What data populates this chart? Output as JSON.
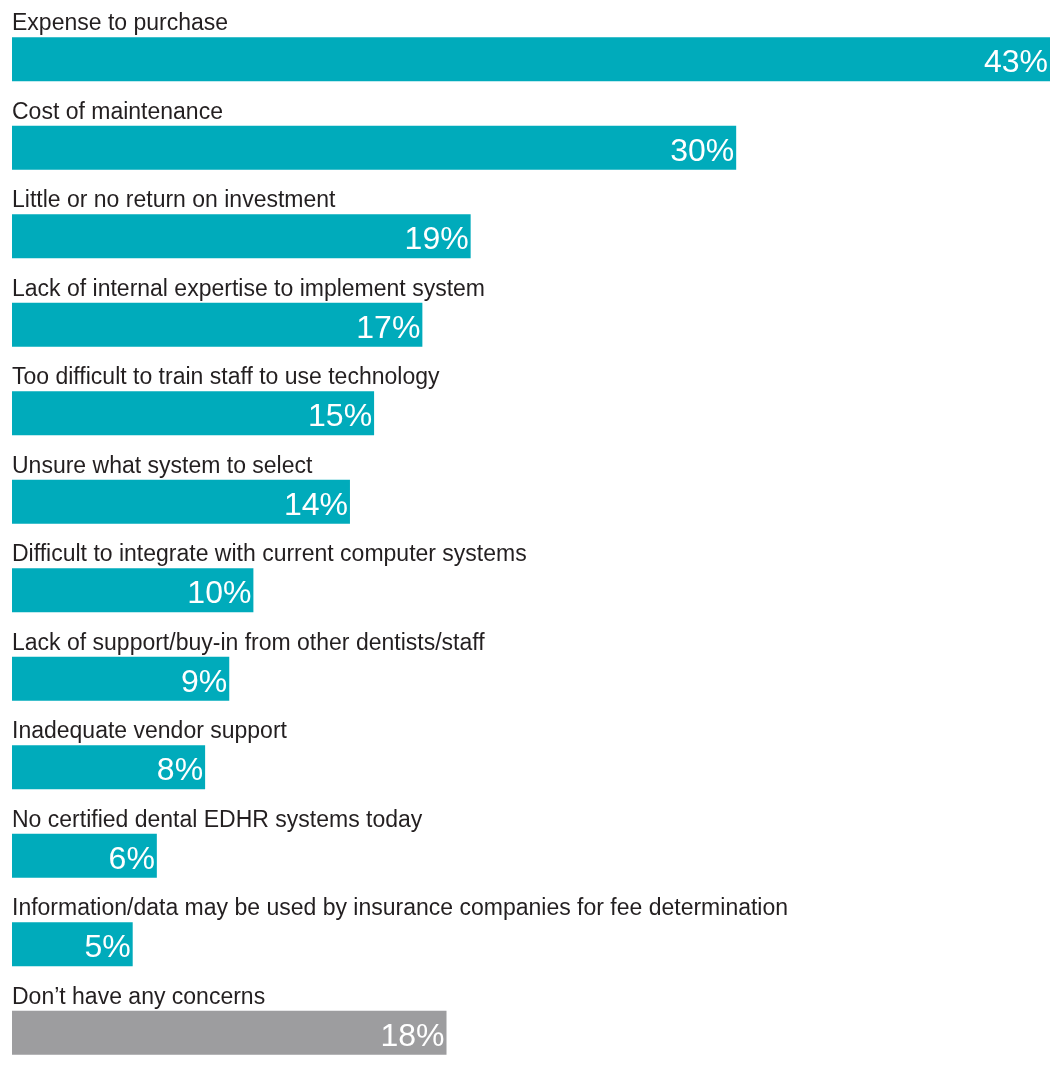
{
  "chart_data": {
    "type": "bar",
    "orientation": "horizontal",
    "value_labels": [
      "43%",
      "30%",
      "19%",
      "17%",
      "15%",
      "14%",
      "10%",
      "9%",
      "8%",
      "6%",
      "5%",
      "18%"
    ],
    "categories": [
      "Expense to purchase",
      "Cost of maintenance",
      "Little or no return on investment",
      "Lack of internal expertise to implement system",
      "Too difficult to train staff to use technology",
      "Unsure what system to select",
      "Difficult to integrate with current computer systems",
      "Lack of support/buy-in from other dentists/staff",
      "Inadequate vendor support",
      "No certified dental EDHR systems today",
      "Information/data may be used by insurance companies for fee determination",
      "Don’t have any concerns"
    ],
    "values": [
      43,
      30,
      19,
      17,
      15,
      14,
      10,
      9,
      8,
      6,
      5,
      18
    ],
    "colors": [
      "#00abbb",
      "#00abbb",
      "#00abbb",
      "#00abbb",
      "#00abbb",
      "#00abbb",
      "#00abbb",
      "#00abbb",
      "#00abbb",
      "#00abbb",
      "#00abbb",
      "#9d9d9f"
    ]
  }
}
